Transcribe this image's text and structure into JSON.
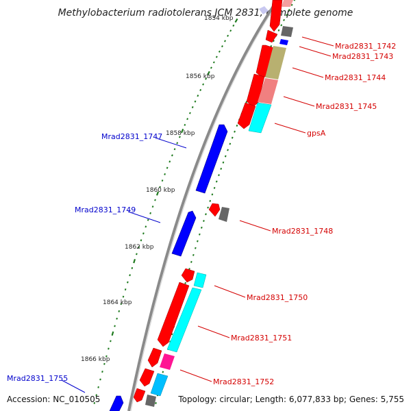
{
  "title": "Methylobacterium radiotolerans JCM 2831, complete genome",
  "footer": {
    "accession": "Accession: NC_010505",
    "topology": "Topology: circular; Length: 6,077,833 bp; Genes: 5,755"
  },
  "colors": {
    "backbone": "#8a8a8a",
    "tick": "#1e7a1e",
    "forward_label": "#0000cc",
    "reverse_label": "#d40000",
    "cds": "#ff0000",
    "cds_forward": "#0000ff",
    "trna": "#666666",
    "cog_cyan": "#00ffff",
    "cog_olive": "#b8b070",
    "cog_pink": "#f08080",
    "cog_magenta": "#ff1493"
  },
  "kbp_ticks": [
    "1854 kbp",
    "1856 kbp",
    "1858 kbp",
    "1860 kbp",
    "1862 kbp",
    "1864 kbp",
    "1866 kbp"
  ],
  "gene_labels": [
    {
      "text": "Mrad2831_1742",
      "strand": "reverse"
    },
    {
      "text": "Mrad2831_1743",
      "strand": "reverse"
    },
    {
      "text": "Mrad2831_1744",
      "strand": "reverse"
    },
    {
      "text": "Mrad2831_1745",
      "strand": "reverse"
    },
    {
      "text": "gpsA",
      "strand": "reverse"
    },
    {
      "text": "Mrad2831_1747",
      "strand": "forward"
    },
    {
      "text": "Mrad2831_1749",
      "strand": "forward"
    },
    {
      "text": "Mrad2831_1748",
      "strand": "reverse"
    },
    {
      "text": "Mrad2831_1750",
      "strand": "reverse"
    },
    {
      "text": "Mrad2831_1751",
      "strand": "reverse"
    },
    {
      "text": "Mrad2831_1752",
      "strand": "reverse"
    },
    {
      "text": "Mrad2831_1755",
      "strand": "forward"
    }
  ]
}
